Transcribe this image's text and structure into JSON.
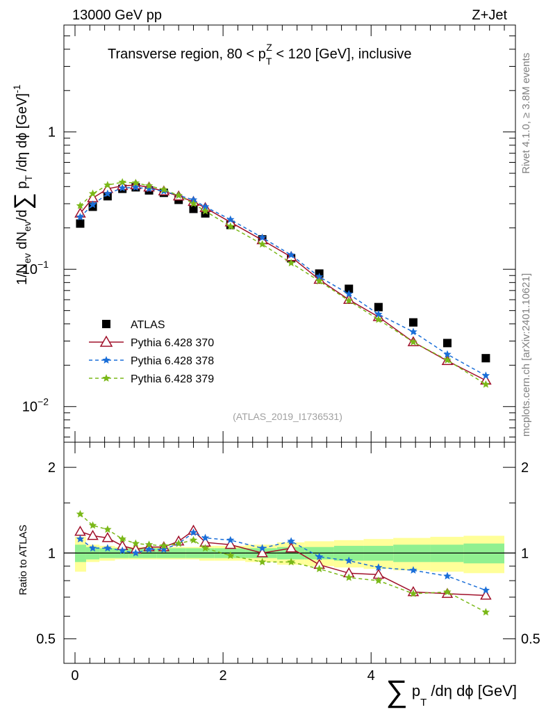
{
  "header": {
    "left": "13000 GeV pp",
    "right": "Z+Jet",
    "title": "Transverse region, 80 < p",
    "title_sub": "T",
    "title_sup": "Z",
    "title_tail": " < 120 [GeV], inclusive"
  },
  "side_labels": {
    "rivet": "Rivet 4.1.0, ≥ 3.8M events",
    "mcplots": "mcplots.cern.ch [arXiv:2401.10621]"
  },
  "watermark": "(ATLAS_2019_I1736531)",
  "axes": {
    "y_main": {
      "p1": "1/N",
      "s1": "ev",
      "p2": " dN",
      "s2": "ev",
      "p3": "/d",
      "sum": "∑",
      "p4": " p",
      "s4": "T",
      "p5": " /dη dϕ  [GeV]",
      "sup": "-1"
    },
    "y_ratio": "Ratio to ATLAS",
    "x": {
      "sum": "∑",
      "p": " p",
      "sub": "T",
      "rest": " /dη dϕ [GeV]"
    },
    "y_main_ticks": [
      {
        "label": "10",
        "sup": "−2"
      },
      {
        "label": "10",
        "sup": "−1"
      },
      {
        "label": "1",
        "sup": ""
      }
    ],
    "y_ratio_ticks": [
      "0.5",
      "1",
      "2"
    ],
    "y_ratio_ticks_right": [
      "0.5",
      "1",
      "2"
    ],
    "x_ticks": [
      "0",
      "2",
      "4"
    ]
  },
  "chart_data": [
    {
      "type": "scatter",
      "panel": "main",
      "yscale": "log",
      "xlim": [
        -0.15,
        5.95
      ],
      "ylim": [
        0.0055,
        6.0
      ],
      "xlabel": "∑ p_T /dη dϕ [GeV]",
      "ylabel": "1/N_ev dN_ev/d∑ p_T /dη dϕ [GeV]^-1",
      "x": [
        0.07,
        0.24,
        0.44,
        0.64,
        0.82,
        1.0,
        1.2,
        1.4,
        1.6,
        1.76,
        2.1,
        2.53,
        2.92,
        3.3,
        3.7,
        4.1,
        4.57,
        5.03,
        5.55
      ],
      "series": [
        {
          "name": "ATLAS",
          "color": "#000000",
          "marker": "square",
          "values": [
            0.215,
            0.285,
            0.34,
            0.385,
            0.395,
            0.375,
            0.36,
            0.32,
            0.275,
            0.255,
            0.21,
            0.165,
            0.12,
            0.093,
            0.072,
            0.053,
            0.041,
            0.029,
            0.0225
          ]
        },
        {
          "name": "Pythia 6.428 370",
          "color": "#a0102a",
          "marker": "triangle",
          "dash": "solid",
          "values": [
            0.255,
            0.33,
            0.385,
            0.405,
            0.41,
            0.395,
            0.37,
            0.34,
            0.31,
            0.28,
            0.22,
            0.163,
            0.123,
            0.084,
            0.06,
            0.045,
            0.0295,
            0.0215,
            0.0155
          ]
        },
        {
          "name": "Pythia 6.428 378",
          "color": "#1a6ed8",
          "marker": "star",
          "dash": "dashed",
          "values": [
            0.24,
            0.295,
            0.355,
            0.39,
            0.395,
            0.385,
            0.37,
            0.345,
            0.32,
            0.285,
            0.23,
            0.17,
            0.127,
            0.088,
            0.066,
            0.047,
            0.035,
            0.024,
            0.0168
          ]
        },
        {
          "name": "Pythia 6.428 379",
          "color": "#7ab818",
          "marker": "star",
          "dash": "dashed",
          "values": [
            0.29,
            0.355,
            0.41,
            0.43,
            0.425,
            0.405,
            0.38,
            0.345,
            0.3,
            0.265,
            0.205,
            0.152,
            0.111,
            0.082,
            0.059,
            0.043,
            0.0295,
            0.0218,
            0.0145
          ]
        }
      ]
    },
    {
      "type": "line",
      "panel": "ratio",
      "yscale": "log",
      "xlim": [
        -0.15,
        5.95
      ],
      "ylim": [
        0.41,
        2.45
      ],
      "ylabel": "Ratio to ATLAS",
      "reference": 1.0,
      "bands": {
        "edges": [
          0.0,
          0.15,
          0.33,
          0.54,
          0.73,
          0.91,
          1.1,
          1.3,
          1.5,
          1.68,
          1.88,
          2.3,
          2.73,
          3.1,
          3.5,
          3.9,
          4.3,
          4.8,
          5.25,
          5.8
        ],
        "inner_lo": [
          0.93,
          0.95,
          0.96,
          0.96,
          0.96,
          0.96,
          0.96,
          0.96,
          0.96,
          0.96,
          0.96,
          0.96,
          0.95,
          0.95,
          0.94,
          0.94,
          0.93,
          0.93,
          0.92
        ],
        "inner_hi": [
          1.07,
          1.05,
          1.04,
          1.04,
          1.04,
          1.04,
          1.04,
          1.04,
          1.04,
          1.04,
          1.04,
          1.04,
          1.05,
          1.05,
          1.06,
          1.06,
          1.07,
          1.07,
          1.08
        ],
        "outer_lo": [
          0.86,
          0.93,
          0.94,
          0.95,
          0.95,
          0.95,
          0.95,
          0.95,
          0.95,
          0.94,
          0.94,
          0.93,
          0.91,
          0.9,
          0.89,
          0.88,
          0.87,
          0.86,
          0.85
        ],
        "outer_hi": [
          1.14,
          1.07,
          1.06,
          1.05,
          1.05,
          1.05,
          1.05,
          1.05,
          1.05,
          1.06,
          1.06,
          1.07,
          1.09,
          1.1,
          1.11,
          1.12,
          1.13,
          1.14,
          1.15
        ],
        "inner_color": "#90f090",
        "outer_color": "#ffff99"
      },
      "x": [
        0.07,
        0.24,
        0.44,
        0.64,
        0.82,
        1.0,
        1.2,
        1.4,
        1.6,
        1.76,
        2.1,
        2.53,
        2.92,
        3.3,
        3.7,
        4.1,
        4.57,
        5.03,
        5.55
      ],
      "series": [
        {
          "name": "Pythia 6.428 370",
          "color": "#a0102a",
          "marker": "triangle",
          "dash": "solid",
          "values": [
            1.19,
            1.15,
            1.13,
            1.06,
            1.03,
            1.05,
            1.05,
            1.1,
            1.2,
            1.09,
            1.07,
            1.0,
            1.04,
            0.91,
            0.85,
            0.84,
            0.73,
            0.72,
            0.71
          ]
        },
        {
          "name": "Pythia 6.428 378",
          "color": "#1a6ed8",
          "marker": "star",
          "dash": "dashed",
          "values": [
            1.12,
            1.04,
            1.04,
            1.02,
            1.0,
            1.03,
            1.03,
            1.08,
            1.18,
            1.13,
            1.11,
            1.04,
            1.1,
            0.97,
            0.94,
            0.89,
            0.87,
            0.83,
            0.74
          ]
        },
        {
          "name": "Pythia 6.428 379",
          "color": "#7ab818",
          "marker": "star",
          "dash": "dashed",
          "values": [
            1.37,
            1.25,
            1.21,
            1.12,
            1.08,
            1.07,
            1.06,
            1.08,
            1.11,
            1.04,
            0.98,
            0.93,
            0.93,
            0.88,
            0.82,
            0.8,
            0.72,
            0.73,
            0.62
          ]
        }
      ]
    }
  ]
}
